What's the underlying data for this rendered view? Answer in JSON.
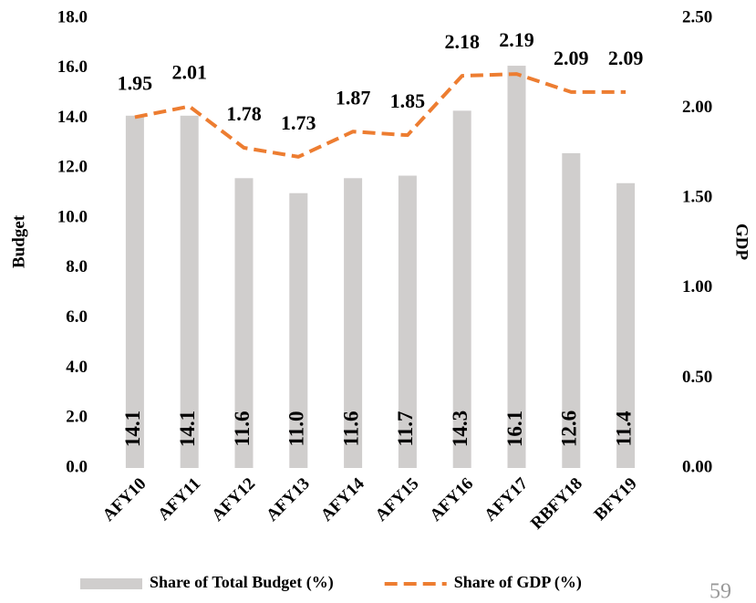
{
  "chart_data": {
    "type": "bar_line",
    "categories": [
      "AFY10",
      "AFY11",
      "AFY12",
      "AFY13",
      "AFY14",
      "AFY15",
      "AFY16",
      "AFY17",
      "RBFY18",
      "BFY19"
    ],
    "series": [
      {
        "name": "Share of Total Budget (%)",
        "type": "bar",
        "color": "#d0cecd",
        "axis": "y",
        "values": [
          14.1,
          14.1,
          11.6,
          11.0,
          11.6,
          11.7,
          14.3,
          16.1,
          12.6,
          11.4
        ],
        "value_labels": [
          "14.1",
          "14.1",
          "11.6",
          "11.0",
          "11.6",
          "11.7",
          "14.3",
          "16.1",
          "12.6",
          "11.4"
        ]
      },
      {
        "name": "Share of GDP (%)",
        "type": "line",
        "color": "#ed7d31",
        "axis": "y2",
        "dashed": true,
        "values": [
          1.95,
          2.01,
          1.78,
          1.73,
          1.87,
          1.85,
          2.18,
          2.19,
          2.09,
          2.09
        ]
      }
    ],
    "ylabel": "Budget",
    "y2label": "GDP",
    "ylim": [
      0,
      18
    ],
    "yticks": [
      {
        "value": 0,
        "label": "0.0"
      },
      {
        "value": 2,
        "label": "2.0"
      },
      {
        "value": 4,
        "label": "4.0"
      },
      {
        "value": 6,
        "label": "6.0"
      },
      {
        "value": 8,
        "label": "8.0"
      },
      {
        "value": 10,
        "label": "10.0"
      },
      {
        "value": 12,
        "label": "12.0"
      },
      {
        "value": 14,
        "label": "14.0"
      },
      {
        "value": 16,
        "label": "16.0"
      },
      {
        "value": 18,
        "label": "18.0"
      }
    ],
    "y2lim": [
      0,
      2.5
    ],
    "y2ticks": [
      {
        "value": 0,
        "label": "0.00"
      },
      {
        "value": 0.5,
        "label": "0.50"
      },
      {
        "value": 1,
        "label": "1.00"
      },
      {
        "value": 1.5,
        "label": "1.50"
      },
      {
        "value": 2,
        "label": "2.00"
      },
      {
        "value": 2.5,
        "label": "2.50"
      }
    ],
    "legend": "bottom",
    "page_number": "59"
  }
}
